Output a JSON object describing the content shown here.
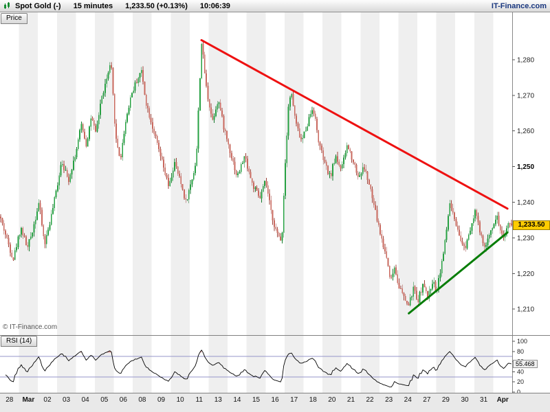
{
  "toolbar": {
    "instrument": "Spot Gold (-)",
    "timeframe": "15 minutes",
    "quote": "1,233.50 (+0.13%)",
    "time": "10:06:39",
    "brand": "IT-Finance.com"
  },
  "price_pane": {
    "tab": "Price",
    "watermark": "© IT-Finance.com",
    "price_tag": "1,233.50"
  },
  "chart_data": {
    "type": "candlestick",
    "title": "Spot Gold 15 minutes",
    "x_labels": [
      "28",
      "Mar",
      "02",
      "03",
      "04",
      "05",
      "06",
      "08",
      "09",
      "10",
      "11",
      "13",
      "14",
      "15",
      "16",
      "17",
      "18",
      "20",
      "21",
      "22",
      "23",
      "24",
      "27",
      "29",
      "30",
      "31",
      "Apr"
    ],
    "bold_x_labels": [
      "Mar",
      "Apr"
    ],
    "candles_per_day": 12,
    "seed": 42,
    "price_axis": {
      "min": 1202.7,
      "max": 1293.3,
      "ticks": [
        1280,
        1270,
        1260,
        1250,
        1240,
        1230,
        1220,
        1210
      ],
      "bold_tick": 1250
    },
    "last_price": 1233.5,
    "up_color": "#26a042",
    "up_border": "#157a2c",
    "down_color": "#c9685e",
    "down_border": "#9c4138",
    "band_color": "#efefef",
    "price_path_anchors": [
      [
        0.0,
        1236
      ],
      [
        0.35,
        1230
      ],
      [
        0.7,
        1224
      ],
      [
        1.1,
        1233
      ],
      [
        1.45,
        1227
      ],
      [
        1.8,
        1234
      ],
      [
        2.05,
        1240
      ],
      [
        2.35,
        1228
      ],
      [
        2.7,
        1236
      ],
      [
        3.0,
        1244
      ],
      [
        3.25,
        1252
      ],
      [
        3.6,
        1246
      ],
      [
        4.0,
        1254
      ],
      [
        4.3,
        1262
      ],
      [
        4.55,
        1256
      ],
      [
        4.8,
        1264
      ],
      [
        5.05,
        1259
      ],
      [
        5.3,
        1268
      ],
      [
        5.6,
        1274
      ],
      [
        5.85,
        1279
      ],
      [
        6.1,
        1258
      ],
      [
        6.35,
        1252
      ],
      [
        6.6,
        1262
      ],
      [
        6.9,
        1270
      ],
      [
        7.2,
        1274
      ],
      [
        7.45,
        1277
      ],
      [
        7.7,
        1268
      ],
      [
        8.0,
        1262
      ],
      [
        8.3,
        1256
      ],
      [
        8.6,
        1250
      ],
      [
        8.9,
        1244
      ],
      [
        9.2,
        1251
      ],
      [
        9.5,
        1246
      ],
      [
        9.8,
        1240
      ],
      [
        10.1,
        1246
      ],
      [
        10.35,
        1252
      ],
      [
        10.62,
        1285
      ],
      [
        10.9,
        1271
      ],
      [
        11.2,
        1263
      ],
      [
        11.5,
        1269
      ],
      [
        11.8,
        1261
      ],
      [
        12.1,
        1255
      ],
      [
        12.5,
        1247
      ],
      [
        12.9,
        1253
      ],
      [
        13.3,
        1245
      ],
      [
        13.7,
        1241
      ],
      [
        14.0,
        1246
      ],
      [
        14.3,
        1237
      ],
      [
        14.6,
        1231
      ],
      [
        14.85,
        1229
      ],
      [
        15.0,
        1247
      ],
      [
        15.2,
        1267
      ],
      [
        15.35,
        1271
      ],
      [
        15.6,
        1262
      ],
      [
        15.9,
        1257
      ],
      [
        16.2,
        1262
      ],
      [
        16.5,
        1267
      ],
      [
        16.8,
        1257
      ],
      [
        17.1,
        1251
      ],
      [
        17.4,
        1247
      ],
      [
        17.7,
        1253
      ],
      [
        18.0,
        1249
      ],
      [
        18.3,
        1256
      ],
      [
        18.6,
        1252
      ],
      [
        18.9,
        1247
      ],
      [
        19.2,
        1250
      ],
      [
        19.5,
        1244
      ],
      [
        19.8,
        1237
      ],
      [
        20.1,
        1230
      ],
      [
        20.4,
        1224
      ],
      [
        20.6,
        1218
      ],
      [
        20.8,
        1222
      ],
      [
        21.0,
        1217
      ],
      [
        21.3,
        1213
      ],
      [
        21.55,
        1211
      ],
      [
        21.8,
        1216
      ],
      [
        22.0,
        1212
      ],
      [
        22.3,
        1217
      ],
      [
        22.55,
        1213
      ],
      [
        22.8,
        1218
      ],
      [
        23.0,
        1215
      ],
      [
        23.25,
        1222
      ],
      [
        23.5,
        1230
      ],
      [
        23.7,
        1240
      ],
      [
        23.9,
        1236
      ],
      [
        24.2,
        1230
      ],
      [
        24.5,
        1227
      ],
      [
        24.8,
        1233
      ],
      [
        25.05,
        1238
      ],
      [
        25.35,
        1230
      ],
      [
        25.6,
        1227
      ],
      [
        25.9,
        1233
      ],
      [
        26.2,
        1236
      ],
      [
        26.5,
        1230
      ],
      [
        26.8,
        1233.5
      ],
      [
        27.0,
        1233.5
      ]
    ],
    "trendlines": [
      {
        "name": "resistance",
        "color": "#ee1111",
        "width": 3,
        "from": [
          10.62,
          1285.5
        ],
        "to": [
          26.75,
          1238.2
        ]
      },
      {
        "name": "support",
        "color": "#067d06",
        "width": 3,
        "from": [
          21.55,
          1208.8
        ],
        "to": [
          26.75,
          1231.5
        ]
      }
    ],
    "rsi": {
      "label": "RSI (14)",
      "period": 14,
      "current": 55.468,
      "current_label": "55.468",
      "ticks": [
        100,
        80,
        60,
        40,
        20,
        0
      ],
      "ref_lines": [
        30,
        70
      ],
      "over_level": 78,
      "line_color": "#000000",
      "ref_color": "#9494c8",
      "over_color": "#d04040"
    }
  }
}
